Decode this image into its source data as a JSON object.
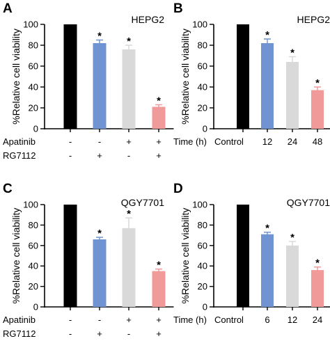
{
  "chart_data": [
    {
      "panel": "A",
      "type": "bar",
      "title": "HEPG2",
      "ylabel": "%Relative cell viability",
      "ylim": [
        0,
        100
      ],
      "yticks": [
        0,
        20,
        40,
        60,
        80,
        100
      ],
      "values": [
        100,
        82,
        76,
        21
      ],
      "errors": [
        0,
        3,
        4,
        2
      ],
      "colors": [
        "#000000",
        "#7094d1",
        "#d9d9d9",
        "#f09a9a"
      ],
      "significance": [
        "",
        "*",
        "*",
        "*"
      ],
      "conditions": [
        {
          "label": "Apatinib",
          "signs": [
            "-",
            "-",
            "+",
            "+"
          ]
        },
        {
          "label": "RG7112",
          "signs": [
            "-",
            "+",
            "-",
            "+"
          ]
        }
      ]
    },
    {
      "panel": "B",
      "type": "bar",
      "title": "HEPG2",
      "ylabel": "%Relative cell viability",
      "ylim": [
        0,
        100
      ],
      "yticks": [
        0,
        20,
        40,
        60,
        80,
        100
      ],
      "axis_label": "Time (h)",
      "categories": [
        "Control",
        "12",
        "24",
        "48"
      ],
      "values": [
        100,
        82,
        64,
        37
      ],
      "errors": [
        0,
        4,
        5,
        3
      ],
      "colors": [
        "#000000",
        "#7094d1",
        "#d9d9d9",
        "#f09a9a"
      ],
      "significance": [
        "",
        "*",
        "*",
        "*"
      ]
    },
    {
      "panel": "C",
      "type": "bar",
      "title": "QGY7701",
      "ylabel": "%Relative cell viability",
      "ylim": [
        0,
        100
      ],
      "yticks": [
        0,
        20,
        40,
        60,
        80,
        100
      ],
      "values": [
        100,
        66,
        77,
        35
      ],
      "errors": [
        0,
        2,
        10,
        2
      ],
      "colors": [
        "#000000",
        "#7094d1",
        "#d9d9d9",
        "#f09a9a"
      ],
      "significance": [
        "",
        "*",
        "*",
        "*"
      ],
      "conditions": [
        {
          "label": "Apatinib",
          "signs": [
            "-",
            "-",
            "+",
            "+"
          ]
        },
        {
          "label": "RG7112",
          "signs": [
            "-",
            "+",
            "-",
            "+"
          ]
        }
      ]
    },
    {
      "panel": "D",
      "type": "bar",
      "title": "QGY7701",
      "ylabel": "%Relative cell viability",
      "ylim": [
        0,
        100
      ],
      "yticks": [
        0,
        20,
        40,
        60,
        80,
        100
      ],
      "axis_label": "Time (h)",
      "categories": [
        "Control",
        "6",
        "12",
        "24"
      ],
      "values": [
        100,
        71,
        60,
        36
      ],
      "errors": [
        0,
        2,
        4,
        3
      ],
      "colors": [
        "#000000",
        "#7094d1",
        "#d9d9d9",
        "#f09a9a"
      ],
      "significance": [
        "",
        "*",
        "*",
        "*"
      ]
    }
  ]
}
